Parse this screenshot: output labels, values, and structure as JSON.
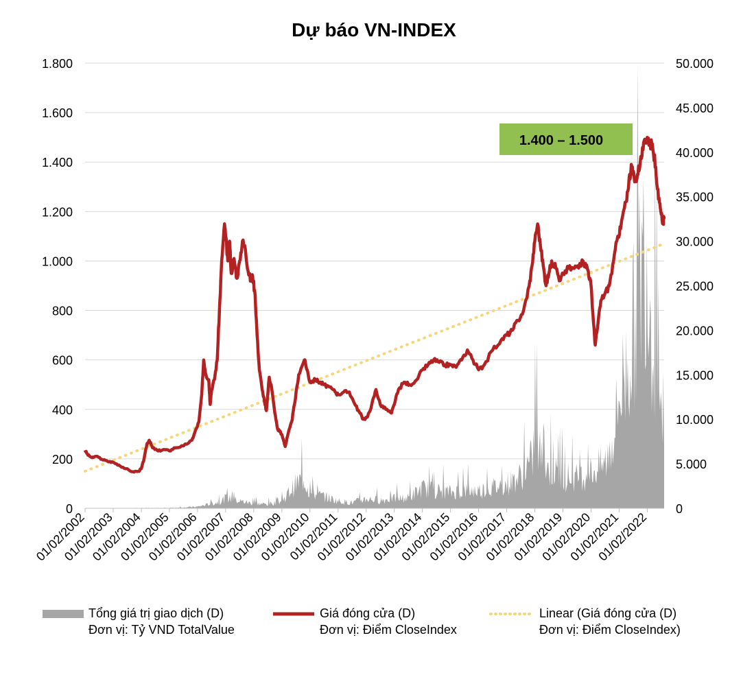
{
  "chart_data": {
    "type": "line",
    "title": "Dự báo VN-INDEX",
    "left_axis": {
      "ylim": [
        0,
        1800
      ],
      "ticks": [
        0,
        200,
        400,
        600,
        800,
        1000,
        1200,
        1400,
        1600,
        1800
      ],
      "tick_labels": [
        "0",
        "200",
        "400",
        "600",
        "800",
        "1.000",
        "1.200",
        "1.400",
        "1.600",
        "1.800"
      ]
    },
    "right_axis": {
      "ylim": [
        0,
        50000
      ],
      "ticks": [
        0,
        5000,
        10000,
        15000,
        20000,
        25000,
        30000,
        35000,
        40000,
        45000,
        50000
      ],
      "tick_labels": [
        "0",
        "5.000",
        "10.000",
        "15.000",
        "20.000",
        "25.000",
        "30.000",
        "35.000",
        "40.000",
        "45.000",
        "50.000"
      ]
    },
    "x_axis": {
      "range": [
        2002.0,
        2022.6
      ],
      "categories": [
        "01/02/2002",
        "01/02/2003",
        "01/02/2004",
        "01/02/2005",
        "01/02/2006",
        "01/02/2007",
        "01/02/2008",
        "01/02/2009",
        "01/02/2010",
        "01/02/2011",
        "01/02/2012",
        "01/02/2013",
        "01/02/2014",
        "01/02/2015",
        "01/02/2016",
        "01/02/2017",
        "01/02/2018",
        "01/02/2019",
        "01/02/2020",
        "01/02/2021",
        "01/02/2022"
      ]
    },
    "series": [
      {
        "name": "Giá đóng cửa (D)",
        "axis": "left",
        "color": "#b22222",
        "points": [
          [
            2002.0,
            235
          ],
          [
            2002.1,
            215
          ],
          [
            2002.25,
            205
          ],
          [
            2002.4,
            210
          ],
          [
            2002.6,
            198
          ],
          [
            2002.8,
            190
          ],
          [
            2003.0,
            186
          ],
          [
            2003.2,
            175
          ],
          [
            2003.45,
            160
          ],
          [
            2003.7,
            148
          ],
          [
            2003.9,
            150
          ],
          [
            2004.0,
            160
          ],
          [
            2004.1,
            200
          ],
          [
            2004.2,
            260
          ],
          [
            2004.28,
            275
          ],
          [
            2004.4,
            245
          ],
          [
            2004.6,
            232
          ],
          [
            2004.8,
            238
          ],
          [
            2005.0,
            232
          ],
          [
            2005.2,
            245
          ],
          [
            2005.5,
            252
          ],
          [
            2005.8,
            275
          ],
          [
            2005.9,
            305
          ],
          [
            2006.05,
            350
          ],
          [
            2006.15,
            460
          ],
          [
            2006.22,
            600
          ],
          [
            2006.3,
            540
          ],
          [
            2006.4,
            520
          ],
          [
            2006.45,
            420
          ],
          [
            2006.5,
            480
          ],
          [
            2006.6,
            520
          ],
          [
            2006.7,
            600
          ],
          [
            2006.78,
            800
          ],
          [
            2006.86,
            1000
          ],
          [
            2006.96,
            1150
          ],
          [
            2007.0,
            1100
          ],
          [
            2007.08,
            1000
          ],
          [
            2007.14,
            1080
          ],
          [
            2007.2,
            950
          ],
          [
            2007.3,
            1010
          ],
          [
            2007.4,
            930
          ],
          [
            2007.5,
            1000
          ],
          [
            2007.6,
            1080
          ],
          [
            2007.7,
            1050
          ],
          [
            2007.8,
            960
          ],
          [
            2007.9,
            920
          ],
          [
            2007.96,
            940
          ],
          [
            2008.05,
            860
          ],
          [
            2008.12,
            700
          ],
          [
            2008.2,
            560
          ],
          [
            2008.3,
            480
          ],
          [
            2008.4,
            420
          ],
          [
            2008.45,
            395
          ],
          [
            2008.55,
            530
          ],
          [
            2008.62,
            500
          ],
          [
            2008.75,
            385
          ],
          [
            2008.85,
            320
          ],
          [
            2008.95,
            310
          ],
          [
            2009.05,
            280
          ],
          [
            2009.12,
            250
          ],
          [
            2009.2,
            290
          ],
          [
            2009.35,
            350
          ],
          [
            2009.45,
            420
          ],
          [
            2009.6,
            540
          ],
          [
            2009.8,
            600
          ],
          [
            2009.9,
            560
          ],
          [
            2010.0,
            510
          ],
          [
            2010.2,
            520
          ],
          [
            2010.35,
            510
          ],
          [
            2010.5,
            500
          ],
          [
            2010.7,
            490
          ],
          [
            2010.9,
            470
          ],
          [
            2011.0,
            460
          ],
          [
            2011.2,
            470
          ],
          [
            2011.4,
            470
          ],
          [
            2011.6,
            420
          ],
          [
            2011.75,
            390
          ],
          [
            2011.9,
            360
          ],
          [
            2012.05,
            370
          ],
          [
            2012.2,
            420
          ],
          [
            2012.35,
            480
          ],
          [
            2012.5,
            420
          ],
          [
            2012.7,
            400
          ],
          [
            2012.9,
            385
          ],
          [
            2013.0,
            420
          ],
          [
            2013.15,
            480
          ],
          [
            2013.35,
            510
          ],
          [
            2013.55,
            500
          ],
          [
            2013.8,
            520
          ],
          [
            2014.0,
            560
          ],
          [
            2014.2,
            580
          ],
          [
            2014.4,
            600
          ],
          [
            2014.6,
            590
          ],
          [
            2014.8,
            580
          ],
          [
            2015.0,
            580
          ],
          [
            2015.2,
            570
          ],
          [
            2015.4,
            600
          ],
          [
            2015.6,
            640
          ],
          [
            2015.8,
            600
          ],
          [
            2016.0,
            560
          ],
          [
            2016.2,
            580
          ],
          [
            2016.5,
            640
          ],
          [
            2016.8,
            680
          ],
          [
            2017.0,
            700
          ],
          [
            2017.2,
            720
          ],
          [
            2017.4,
            760
          ],
          [
            2017.6,
            800
          ],
          [
            2017.8,
            900
          ],
          [
            2017.9,
            980
          ],
          [
            2018.0,
            1080
          ],
          [
            2018.1,
            1150
          ],
          [
            2018.2,
            1060
          ],
          [
            2018.3,
            980
          ],
          [
            2018.4,
            900
          ],
          [
            2018.5,
            950
          ],
          [
            2018.6,
            1000
          ],
          [
            2018.75,
            970
          ],
          [
            2018.9,
            920
          ],
          [
            2019.0,
            950
          ],
          [
            2019.2,
            970
          ],
          [
            2019.4,
            970
          ],
          [
            2019.6,
            990
          ],
          [
            2019.8,
            990
          ],
          [
            2019.9,
            960
          ],
          [
            2020.0,
            900
          ],
          [
            2020.08,
            760
          ],
          [
            2020.15,
            660
          ],
          [
            2020.25,
            750
          ],
          [
            2020.35,
            840
          ],
          [
            2020.5,
            870
          ],
          [
            2020.65,
            900
          ],
          [
            2020.8,
            1000
          ],
          [
            2020.95,
            1100
          ],
          [
            2021.05,
            1130
          ],
          [
            2021.15,
            1200
          ],
          [
            2021.25,
            1240
          ],
          [
            2021.35,
            1330
          ],
          [
            2021.45,
            1380
          ],
          [
            2021.55,
            1320
          ],
          [
            2021.65,
            1350
          ],
          [
            2021.75,
            1400
          ],
          [
            2021.85,
            1450
          ],
          [
            2021.95,
            1490
          ],
          [
            2022.0,
            1500
          ],
          [
            2022.1,
            1480
          ],
          [
            2022.2,
            1450
          ],
          [
            2022.3,
            1380
          ],
          [
            2022.4,
            1250
          ],
          [
            2022.48,
            1200
          ],
          [
            2022.56,
            1160
          ],
          [
            2022.6,
            1170
          ]
        ]
      },
      {
        "name": "Linear (Giá đóng cửa (D)",
        "axis": "left",
        "color": "#f5d77a",
        "points": [
          [
            2002.0,
            150
          ],
          [
            2022.6,
            1070
          ]
        ]
      },
      {
        "name": "Tổng giá trị giao dịch (D)",
        "axis": "right",
        "color": "#a6a6a6",
        "points": [
          [
            2002.0,
            20
          ],
          [
            2003.0,
            20
          ],
          [
            2004.0,
            30
          ],
          [
            2005.0,
            40
          ],
          [
            2006.0,
            200
          ],
          [
            2006.8,
            800
          ],
          [
            2007.0,
            1300
          ],
          [
            2007.5,
            900
          ],
          [
            2008.0,
            600
          ],
          [
            2008.5,
            500
          ],
          [
            2009.0,
            900
          ],
          [
            2009.5,
            3000
          ],
          [
            2009.8,
            3800
          ],
          [
            2010.0,
            1800
          ],
          [
            2010.5,
            1500
          ],
          [
            2011.0,
            900
          ],
          [
            2011.5,
            700
          ],
          [
            2012.0,
            1200
          ],
          [
            2012.5,
            1000
          ],
          [
            2013.0,
            1200
          ],
          [
            2013.5,
            1300
          ],
          [
            2014.0,
            2500
          ],
          [
            2014.5,
            2200
          ],
          [
            2015.0,
            2000
          ],
          [
            2015.5,
            2200
          ],
          [
            2016.0,
            2200
          ],
          [
            2016.5,
            2600
          ],
          [
            2017.0,
            3000
          ],
          [
            2017.5,
            4000
          ],
          [
            2017.9,
            6000
          ],
          [
            2018.0,
            9000
          ],
          [
            2018.3,
            5500
          ],
          [
            2018.6,
            4500
          ],
          [
            2019.0,
            4000
          ],
          [
            2019.5,
            3800
          ],
          [
            2020.0,
            4500
          ],
          [
            2020.5,
            5500
          ],
          [
            2020.8,
            9000
          ],
          [
            2021.0,
            14000
          ],
          [
            2021.3,
            18000
          ],
          [
            2021.5,
            22000
          ],
          [
            2021.8,
            30000
          ],
          [
            2021.95,
            34000
          ],
          [
            2022.1,
            26000
          ],
          [
            2022.3,
            18000
          ],
          [
            2022.5,
            13000
          ],
          [
            2022.6,
            11000
          ]
        ]
      }
    ],
    "legend": {
      "placement": "bottom",
      "entries": [
        {
          "line1": "Tổng giá trị giao dịch (D)",
          "line2": "Đơn vị: Tỷ VND TotalValue"
        },
        {
          "line1": "Giá đóng cửa (D)",
          "line2": "Đơn vị: Điểm CloseIndex"
        },
        {
          "line1": "Linear (Giá đóng cửa (D)",
          "line2": "Đơn vị: Điểm CloseIndex)"
        }
      ]
    },
    "annotation": {
      "text": "1.400 – 1.500",
      "color": "#92c050"
    },
    "grid": true
  }
}
